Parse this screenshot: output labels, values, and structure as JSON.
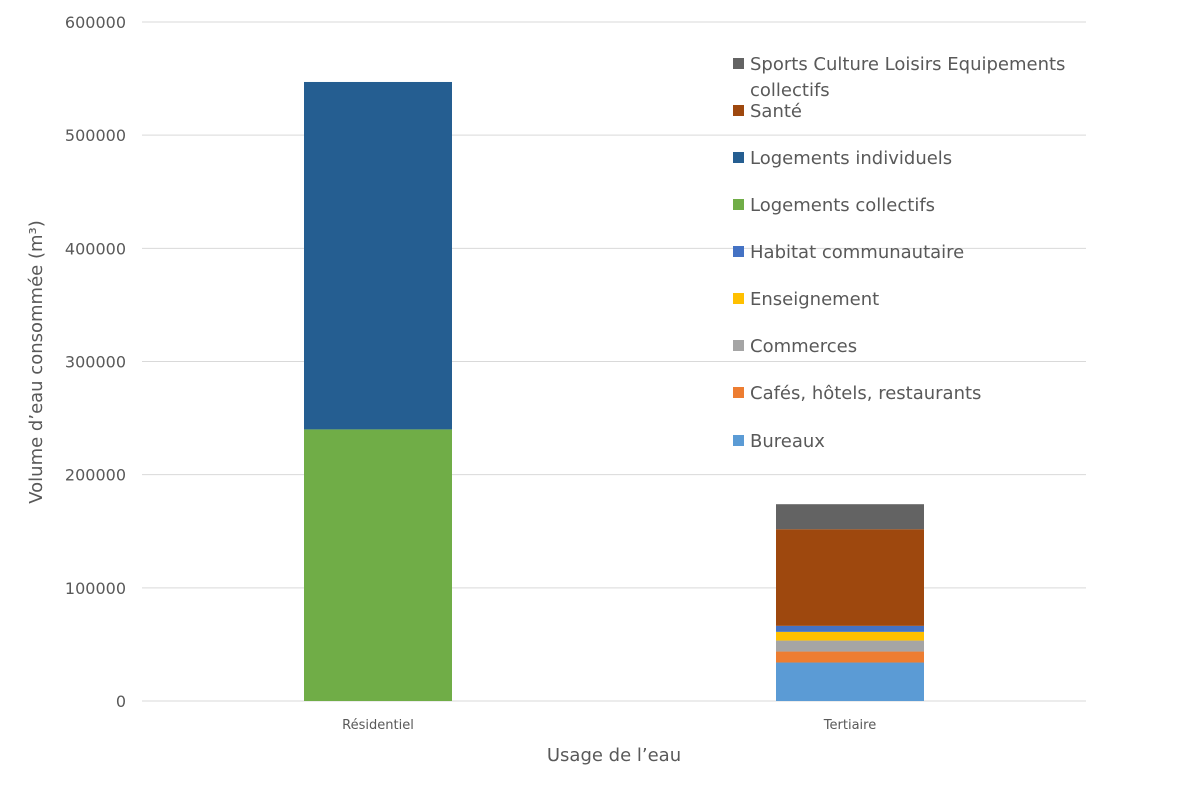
{
  "chart_data": {
    "type": "bar",
    "stacked": true,
    "categories": [
      "Résidentiel",
      "Tertiaire"
    ],
    "xlabel": "Usage de l’eau",
    "ylabel": "Volume d’eau consommée (m³)",
    "ylim": [
      0,
      600000
    ],
    "yticks": [
      0,
      100000,
      200000,
      300000,
      400000,
      500000,
      600000
    ],
    "grid": true,
    "legend_position": "right",
    "series": [
      {
        "name": "Bureaux",
        "color": "#5B9BD5",
        "values": [
          0,
          34000
        ]
      },
      {
        "name": "Cafés, hôtels, restaurants",
        "color": "#ED7D31",
        "values": [
          0,
          9700
        ]
      },
      {
        "name": "Commerces",
        "color": "#A5A5A5",
        "values": [
          0,
          9700
        ]
      },
      {
        "name": "Enseignement",
        "color": "#FFC000",
        "values": [
          0,
          7700
        ]
      },
      {
        "name": "Habitat communautaire",
        "color": "#4472C4",
        "values": [
          0,
          5300
        ]
      },
      {
        "name": "Logements collectifs",
        "color": "#70AD47",
        "values": [
          240000,
          0
        ]
      },
      {
        "name": "Logements individuels",
        "color": "#255E91",
        "values": [
          307000,
          0
        ]
      },
      {
        "name": "Santé",
        "color": "#9E480E",
        "values": [
          0,
          85400
        ]
      },
      {
        "name": "Sports Culture Loisirs Equipements collectifs",
        "color": "#636363",
        "values": [
          0,
          22100
        ]
      }
    ]
  }
}
